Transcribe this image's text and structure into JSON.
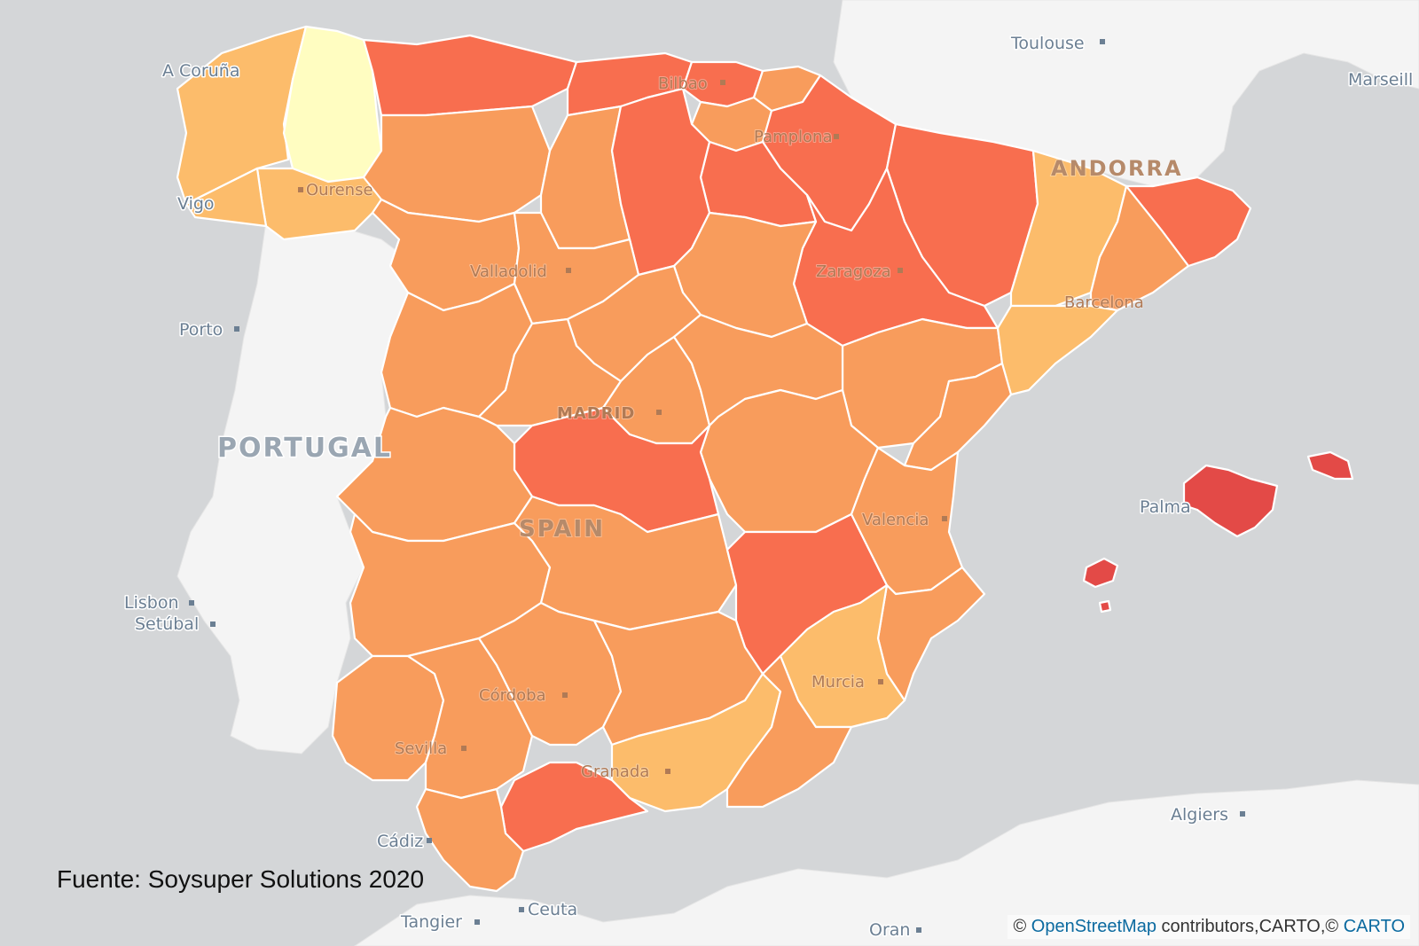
{
  "map": {
    "source_note": "Fuente: Soysuper Solutions 2020",
    "attribution": {
      "prefix": "©",
      "osm_link": "OpenStreetMap",
      "middle": "contributors,CARTO,©",
      "carto_link": "CARTO"
    },
    "countries": [
      "PORTUGAL",
      "SPAIN",
      "ANDORRA"
    ],
    "cities": {
      "a_coruna": "A Coruña",
      "vigo": "Vigo",
      "ourense": "Ourense",
      "bilbao": "Bilbao",
      "pamplona": "Pamplona",
      "toulouse": "Toulouse",
      "marseille": "Marseill",
      "valladolid": "Valladolid",
      "zaragoza": "Zaragoza",
      "barcelona": "Barcelona",
      "porto": "Porto",
      "madrid": "MADRID",
      "valencia": "Valencia",
      "lisbon": "Lisbon",
      "setubal": "Setúbal",
      "palma": "Palma",
      "murcia": "Murcia",
      "cordoba": "Córdoba",
      "sevilla": "Sevilla",
      "granada": "Granada",
      "cadiz": "Cádiz",
      "ceuta": "Ceuta",
      "tangier": "Tangier",
      "algiers": "Algiers",
      "oran": "Oran"
    },
    "colors": {
      "sea": "#d4d6d8",
      "land": "#f4f4f4",
      "very_low": "#fffdc1",
      "low": "#fcbc6b",
      "medium": "#f89c5c",
      "high": "#f86e4f",
      "very_high": "#e34a47"
    }
  }
}
